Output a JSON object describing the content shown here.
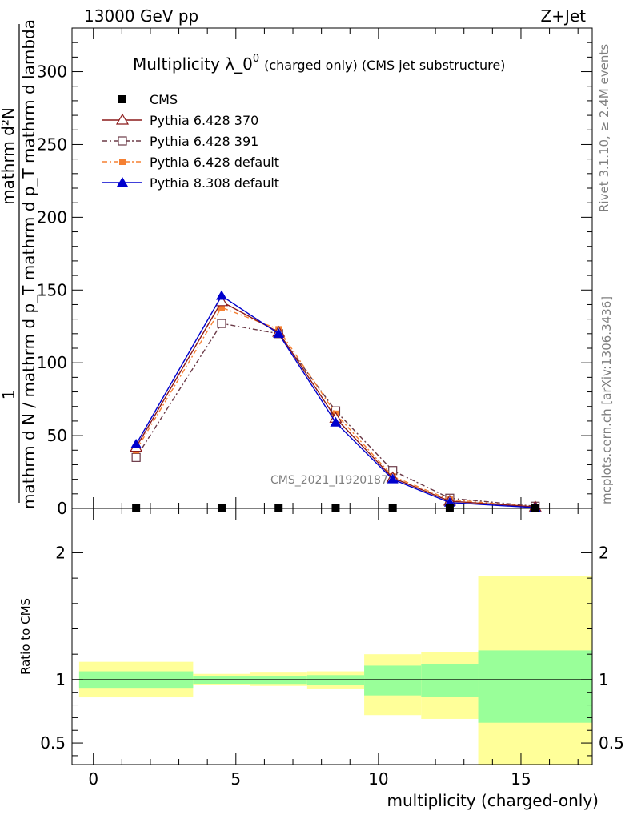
{
  "header": {
    "energy_label": "13000 GeV pp",
    "process_label": "Z+Jet"
  },
  "side_labels": {
    "rivet_version": "Rivet 3.1.10, ≥ 2.4M events",
    "source": "mcplots.cern.ch [arXiv:1306.3436]"
  },
  "watermark": "CMS_2021_I1920187",
  "colors": {
    "cms": "#000000",
    "p370": "#8b1a1a",
    "p391": "#6b3a47",
    "p6def": "#f58032",
    "p8def": "#0000cd",
    "band_inner": "#99ff99",
    "band_outer": "#ffff99"
  },
  "chart_data": [
    {
      "type": "line",
      "title_main": "Multiplicity λ_0",
      "title_sup": "0",
      "title_sub": "(charged only) (CMS jet substructure)",
      "ylabel_one": "1",
      "ylabel_den": "mathrm d N / mathrm d p_T mathrm d p_T mathrm d lambda",
      "ylabel_num": "mathrm d²N",
      "xlim": [
        -0.75,
        17.5
      ],
      "ylim": [
        0,
        330
      ],
      "yticks": [
        0,
        50,
        100,
        150,
        200,
        250,
        300
      ],
      "legend_position": "top-left",
      "series": [
        {
          "name": "CMS",
          "marker": "filled-square",
          "x": [
            1.5,
            4.5,
            6.5,
            8.5,
            10.5,
            12.5,
            15.5
          ],
          "y": [
            0,
            0,
            0,
            0,
            0,
            0,
            0
          ]
        },
        {
          "name": "Pythia 6.428 370",
          "marker": "open-triangle",
          "line": "solid",
          "x": [
            1.5,
            4.5,
            6.5,
            8.5,
            10.5,
            12.5,
            15.5
          ],
          "y": [
            42,
            142,
            121,
            62,
            21,
            5,
            1
          ]
        },
        {
          "name": "Pythia 6.428 391",
          "marker": "open-square",
          "line": "dash-dot",
          "x": [
            1.5,
            4.5,
            6.5,
            8.5,
            10.5,
            12.5,
            15.5
          ],
          "y": [
            35,
            127,
            120,
            67,
            26,
            7,
            1.5
          ]
        },
        {
          "name": "Pythia 6.428 default",
          "marker": "filled-small-square",
          "line": "dash-dot",
          "x": [
            1.5,
            4.5,
            6.5,
            8.5,
            10.5,
            12.5,
            15.5
          ],
          "y": [
            40,
            138,
            123,
            65,
            22,
            6,
            1
          ]
        },
        {
          "name": "Pythia 8.308 default",
          "marker": "filled-triangle",
          "line": "solid",
          "x": [
            1.5,
            4.5,
            6.5,
            8.5,
            10.5,
            12.5,
            15.5
          ],
          "y": [
            44,
            146,
            120,
            59,
            20,
            4,
            0.5
          ]
        }
      ]
    },
    {
      "type": "area",
      "ylabel": "Ratio to CMS",
      "xlabel": "multiplicity (charged-only)",
      "xlim": [
        -0.75,
        17.5
      ],
      "ylim": [
        0.33,
        2.35
      ],
      "xticks": [
        0,
        5,
        10,
        15
      ],
      "yticks": [
        0.5,
        1,
        2
      ],
      "reference_line": 1,
      "bins": [
        {
          "x": [
            -0.5,
            3.5
          ],
          "inner": [
            0.935,
            1.065
          ],
          "outer": [
            0.86,
            1.14
          ]
        },
        {
          "x": [
            3.5,
            5.5
          ],
          "inner": [
            0.965,
            1.025
          ],
          "outer": [
            0.955,
            1.045
          ]
        },
        {
          "x": [
            5.5,
            7.5
          ],
          "inner": [
            0.96,
            1.03
          ],
          "outer": [
            0.95,
            1.055
          ]
        },
        {
          "x": [
            7.5,
            9.5
          ],
          "inner": [
            0.955,
            1.035
          ],
          "outer": [
            0.93,
            1.065
          ]
        },
        {
          "x": [
            9.5,
            11.5
          ],
          "inner": [
            0.875,
            1.11
          ],
          "outer": [
            0.72,
            1.2
          ]
        },
        {
          "x": [
            11.5,
            13.5
          ],
          "inner": [
            0.865,
            1.12
          ],
          "outer": [
            0.69,
            1.22
          ]
        },
        {
          "x": [
            13.5,
            17.5
          ],
          "inner": [
            0.66,
            1.23
          ],
          "outer": [
            0.33,
            1.815
          ]
        }
      ]
    }
  ]
}
